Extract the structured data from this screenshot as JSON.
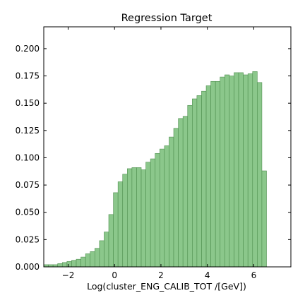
{
  "chart_data": {
    "type": "bar",
    "title": "Regression Target",
    "xlabel": "Log(cluster_ENG_CALIB_TOT /[GeV])",
    "ylabel": "",
    "xlim": [
      -3.05,
      7.6
    ],
    "ylim": [
      0,
      0.22
    ],
    "x_ticks": [
      -2,
      0,
      2,
      4,
      6
    ],
    "y_ticks": [
      0.0,
      0.025,
      0.05,
      0.075,
      0.1,
      0.125,
      0.15,
      0.175,
      0.2
    ],
    "x_tick_labels": [
      "−2",
      "0",
      "2",
      "4",
      "6"
    ],
    "y_tick_labels": [
      "0.000",
      "0.025",
      "0.050",
      "0.075",
      "0.100",
      "0.125",
      "0.150",
      "0.175",
      "0.200"
    ],
    "bin_start": -3.05,
    "bin_width": 0.2,
    "values": [
      0.002,
      0.002,
      0.002,
      0.003,
      0.004,
      0.005,
      0.006,
      0.007,
      0.009,
      0.012,
      0.014,
      0.017,
      0.024,
      0.032,
      0.048,
      0.068,
      0.078,
      0.085,
      0.09,
      0.091,
      0.091,
      0.089,
      0.096,
      0.099,
      0.104,
      0.108,
      0.111,
      0.119,
      0.127,
      0.136,
      0.138,
      0.148,
      0.154,
      0.157,
      0.161,
      0.166,
      0.17,
      0.17,
      0.174,
      0.176,
      0.175,
      0.178,
      0.178,
      0.176,
      0.177,
      0.179,
      0.169,
      0.088
    ],
    "bar_color": "#8bc78b",
    "bar_edge_color": "#4f8f4f",
    "grid": false,
    "ticks_direction": "in",
    "ticks_on_all_sides": true
  }
}
